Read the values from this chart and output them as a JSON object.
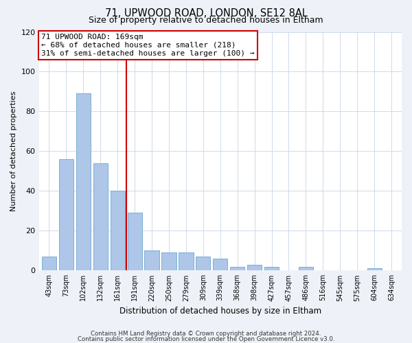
{
  "title": "71, UPWOOD ROAD, LONDON, SE12 8AL",
  "subtitle": "Size of property relative to detached houses in Eltham",
  "xlabel": "Distribution of detached houses by size in Eltham",
  "ylabel": "Number of detached properties",
  "categories": [
    "43sqm",
    "73sqm",
    "102sqm",
    "132sqm",
    "161sqm",
    "191sqm",
    "220sqm",
    "250sqm",
    "279sqm",
    "309sqm",
    "339sqm",
    "368sqm",
    "398sqm",
    "427sqm",
    "457sqm",
    "486sqm",
    "516sqm",
    "545sqm",
    "575sqm",
    "604sqm",
    "634sqm"
  ],
  "values": [
    7,
    56,
    89,
    54,
    40,
    29,
    10,
    9,
    9,
    7,
    6,
    2,
    3,
    2,
    0,
    2,
    0,
    0,
    0,
    1,
    0
  ],
  "bar_color": "#aec6e8",
  "bar_edge_color": "#7bafd4",
  "vline_x": 4.5,
  "vline_color": "#cc0000",
  "annotation_title": "71 UPWOOD ROAD: 169sqm",
  "annotation_line1": "← 68% of detached houses are smaller (218)",
  "annotation_line2": "31% of semi-detached houses are larger (100) →",
  "annotation_box_color": "#ffffff",
  "annotation_box_edge": "#cc0000",
  "ylim": [
    0,
    120
  ],
  "yticks": [
    0,
    20,
    40,
    60,
    80,
    100,
    120
  ],
  "footer1": "Contains HM Land Registry data © Crown copyright and database right 2024.",
  "footer2": "Contains public sector information licensed under the Open Government Licence v3.0.",
  "bg_color": "#eef2f8",
  "plot_bg_color": "#ffffff"
}
